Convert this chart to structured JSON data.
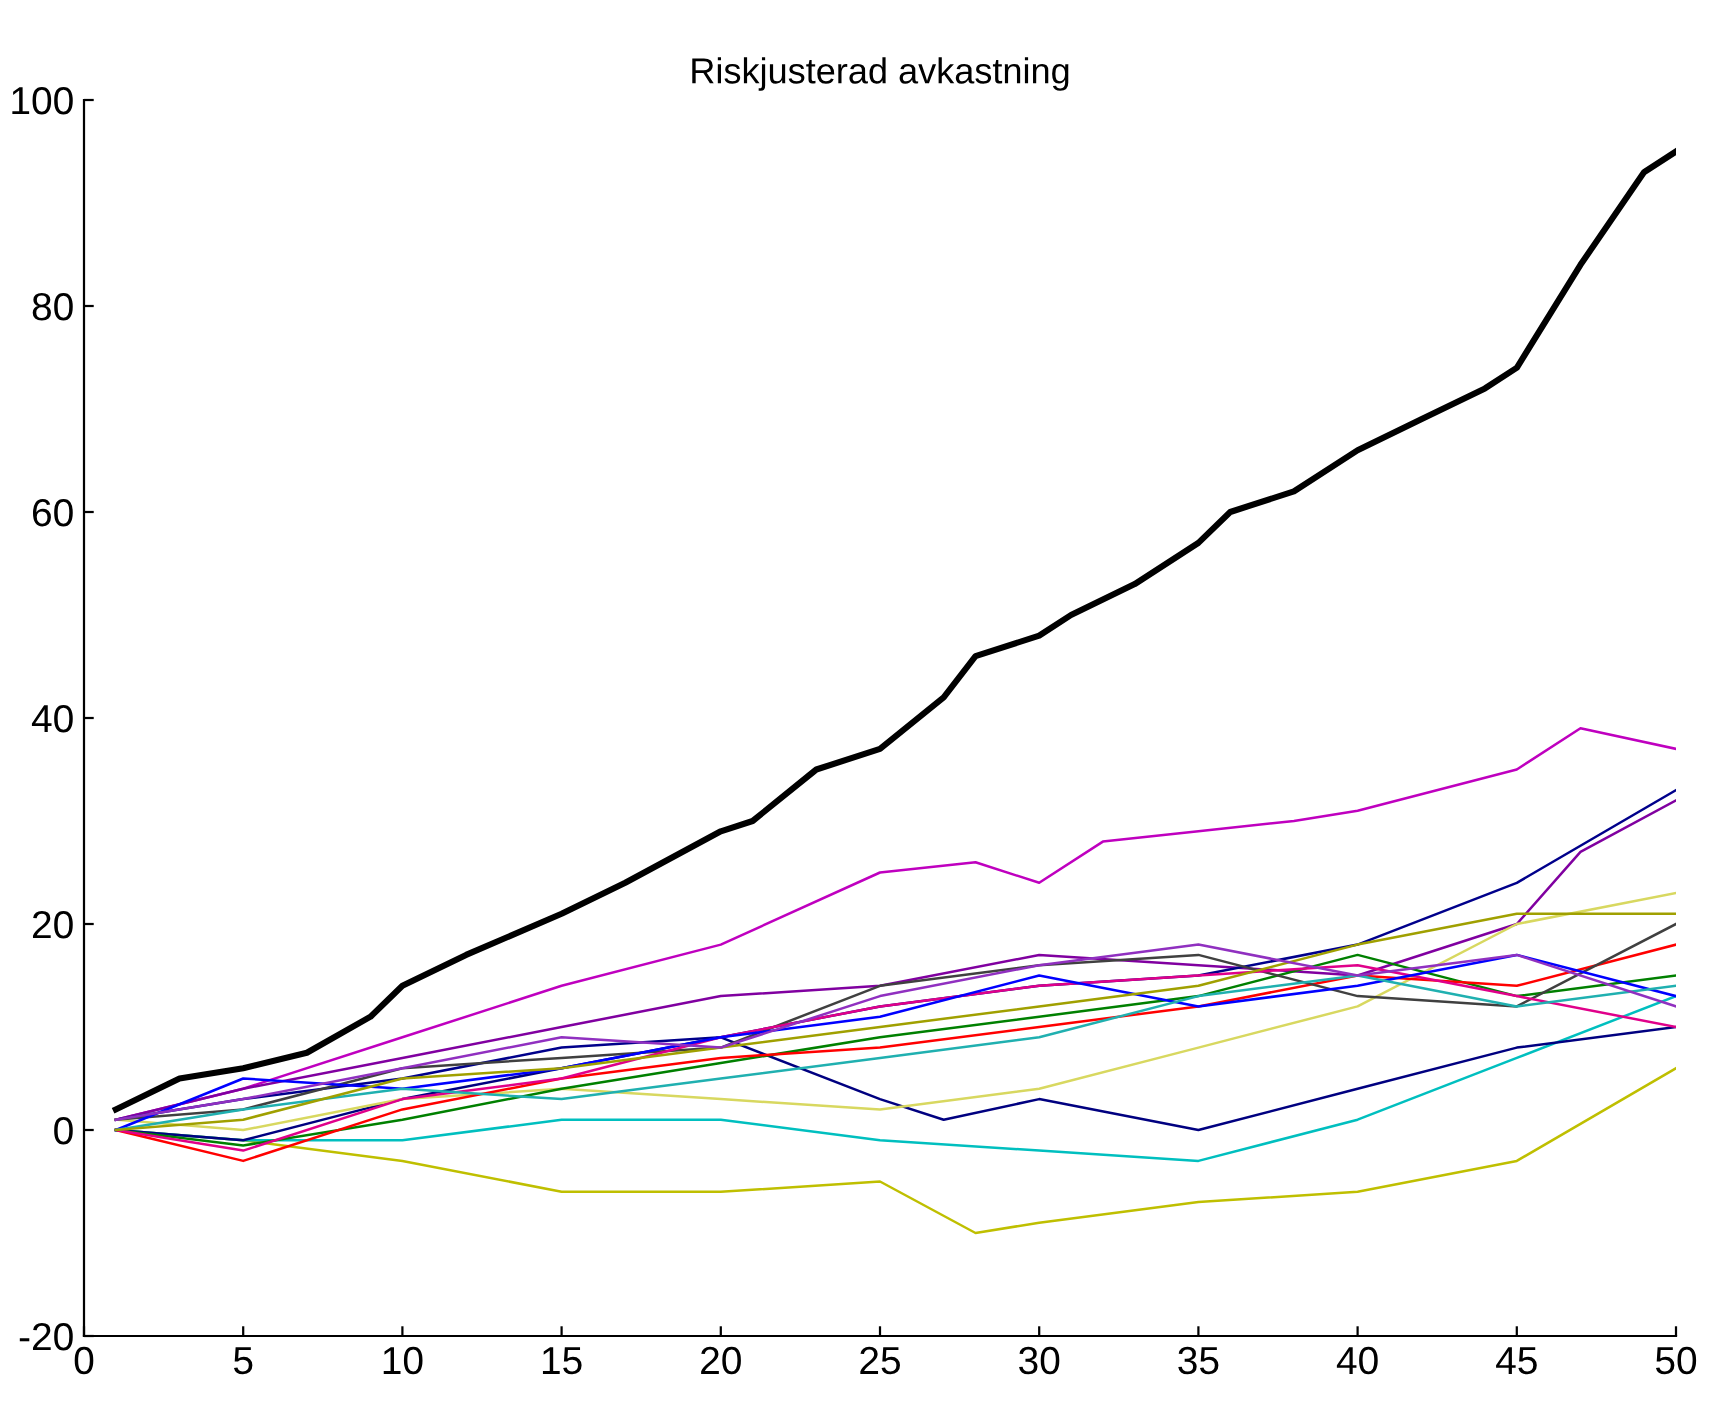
{
  "chart_data": {
    "type": "line",
    "title": "Riskjusterad avkastning",
    "xlim": [
      0,
      50
    ],
    "ylim": [
      -20,
      100
    ],
    "xticks": [
      0,
      5,
      10,
      15,
      20,
      25,
      30,
      35,
      40,
      45,
      50
    ],
    "yticks": [
      -20,
      0,
      20,
      40,
      60,
      80,
      100
    ],
    "grid": false,
    "marker": "none",
    "line_style": "solid",
    "series": [
      {
        "color": "#000000",
        "x": [
          1,
          3,
          5,
          7,
          9,
          10,
          12,
          15,
          17,
          20,
          21,
          23,
          25,
          27,
          28,
          30,
          31,
          33,
          35,
          36,
          38,
          40,
          42,
          44,
          45,
          47,
          49,
          50
        ],
        "values": [
          2,
          5,
          6,
          7.5,
          11,
          14,
          17,
          21,
          24,
          29,
          30,
          35,
          37,
          42,
          46,
          48,
          50,
          53,
          57,
          60,
          62,
          66,
          69,
          72,
          74,
          84,
          93,
          95
        ]
      },
      {
        "color": "#bf00bf",
        "x": [
          1,
          5,
          10,
          15,
          20,
          25,
          28,
          30,
          32,
          35,
          38,
          40,
          45,
          47,
          50
        ],
        "values": [
          1,
          4,
          9,
          14,
          18,
          25,
          26,
          24,
          28,
          29,
          30,
          31,
          35,
          39,
          37
        ]
      },
      {
        "color": "#8000a0",
        "x": [
          1,
          5,
          10,
          15,
          20,
          25,
          30,
          35,
          40,
          45,
          47,
          50
        ],
        "values": [
          1,
          4,
          7,
          10,
          13,
          14,
          17,
          16,
          15,
          20,
          27,
          32
        ]
      },
      {
        "color": "#00008b",
        "x": [
          1,
          5,
          10,
          15,
          20,
          25,
          30,
          35,
          40,
          45,
          50
        ],
        "values": [
          1,
          3,
          5,
          8,
          9,
          12,
          14,
          15,
          18,
          24,
          33
        ]
      },
      {
        "color": "#bfbf00",
        "x": [
          1,
          5,
          10,
          15,
          20,
          25,
          28,
          30,
          35,
          40,
          45,
          50
        ],
        "values": [
          0,
          -1,
          -3,
          -6,
          -6,
          -5,
          -10,
          -9,
          -7,
          -6,
          -3,
          6
        ]
      },
      {
        "color": "#00bfbf",
        "x": [
          1,
          5,
          10,
          15,
          20,
          25,
          30,
          35,
          40,
          45,
          50
        ],
        "values": [
          0,
          -1,
          -1,
          1,
          1,
          -1,
          -2,
          -3,
          1,
          7,
          13
        ]
      },
      {
        "color": "#000080",
        "x": [
          1,
          5,
          10,
          15,
          20,
          25,
          27,
          30,
          35,
          40,
          45,
          50
        ],
        "values": [
          0,
          -1,
          3,
          6,
          9,
          3,
          1,
          3,
          0,
          4,
          8,
          10
        ]
      },
      {
        "color": "#d8d860",
        "x": [
          1,
          5,
          10,
          15,
          20,
          25,
          30,
          35,
          40,
          45,
          50
        ],
        "values": [
          1,
          0,
          3,
          4,
          3,
          2,
          4,
          8,
          12,
          20,
          23
        ]
      },
      {
        "color": "#008000",
        "x": [
          1,
          5,
          10,
          15,
          20,
          25,
          30,
          35,
          40,
          45,
          50
        ],
        "values": [
          0,
          -1.5,
          1,
          4,
          6.5,
          9,
          11,
          13,
          17,
          13,
          15
        ]
      },
      {
        "color": "#ff0000",
        "x": [
          1,
          5,
          10,
          15,
          20,
          25,
          30,
          35,
          40,
          45,
          50
        ],
        "values": [
          0,
          -3,
          2,
          5,
          7,
          8,
          10,
          12,
          15,
          14,
          18
        ]
      },
      {
        "color": "#404040",
        "x": [
          1,
          5,
          10,
          15,
          20,
          25,
          30,
          35,
          40,
          45,
          50
        ],
        "values": [
          1,
          2,
          6,
          7,
          8,
          14,
          16,
          17,
          13,
          12,
          20
        ]
      },
      {
        "color": "#e0008a",
        "x": [
          1,
          5,
          10,
          15,
          20,
          25,
          30,
          35,
          40,
          45,
          50
        ],
        "values": [
          0,
          -2,
          3,
          5,
          9,
          12,
          14,
          15,
          16,
          13,
          10
        ]
      },
      {
        "color": "#0000ff",
        "x": [
          1,
          5,
          10,
          15,
          20,
          25,
          30,
          35,
          40,
          45,
          50
        ],
        "values": [
          0,
          5,
          4,
          6,
          9,
          11,
          15,
          12,
          14,
          17,
          13
        ]
      },
      {
        "color": "#20b0b0",
        "x": [
          1,
          5,
          10,
          15,
          20,
          25,
          30,
          35,
          40,
          45,
          50
        ],
        "values": [
          0,
          2,
          4,
          3,
          5,
          7,
          9,
          13,
          15,
          12,
          14
        ]
      },
      {
        "color": "#a0a000",
        "x": [
          1,
          5,
          10,
          15,
          20,
          25,
          30,
          35,
          40,
          45,
          50
        ],
        "values": [
          0,
          1,
          5,
          6,
          8,
          10,
          12,
          14,
          18,
          21,
          21
        ]
      },
      {
        "color": "#9030c0",
        "x": [
          1,
          5,
          10,
          15,
          20,
          25,
          30,
          35,
          40,
          45,
          50
        ],
        "values": [
          1,
          3,
          6,
          9,
          8,
          13,
          16,
          18,
          15,
          17,
          12
        ]
      }
    ]
  }
}
